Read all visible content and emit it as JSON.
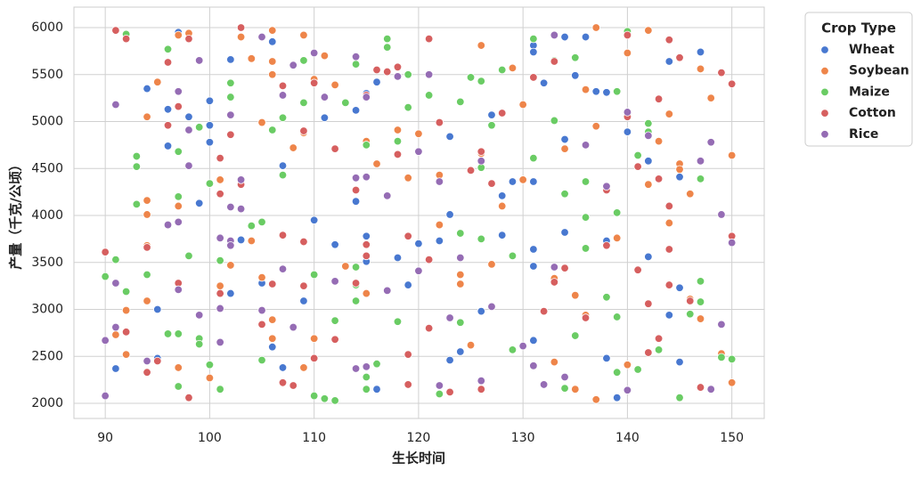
{
  "chart_data": {
    "type": "scatter",
    "xlabel": "生长时间",
    "ylabel": "产量（千克/公顷）",
    "legend_title": "Crop Type",
    "legend": "upper right outside",
    "grid": true,
    "xlim": [
      87,
      153.1
    ],
    "ylim": [
      1839,
      6218
    ],
    "xticks": [
      90,
      100,
      110,
      120,
      130,
      140,
      150
    ],
    "yticks": [
      2000,
      2500,
      3000,
      3500,
      4000,
      4500,
      5000,
      5500,
      6000
    ],
    "series": [
      {
        "name": "Wheat",
        "color": "#4878d0",
        "x": [
          91,
          94,
          95,
          95,
          96,
          96,
          97,
          98,
          99,
          100,
          100,
          100,
          102,
          102,
          103,
          105,
          106,
          106,
          107,
          107,
          109,
          110,
          111,
          112,
          114,
          114,
          115,
          115,
          115,
          116,
          116,
          118,
          119,
          120,
          122,
          123,
          123,
          123,
          124,
          126,
          127,
          128,
          128,
          129,
          131,
          131,
          131,
          131,
          131,
          131,
          132,
          134,
          134,
          134,
          135,
          136,
          137,
          138,
          138,
          138,
          139,
          140,
          142,
          142,
          144,
          144,
          145,
          145,
          145,
          147
        ],
        "values": [
          2370,
          5350,
          3000,
          2480,
          5130,
          4740,
          5950,
          5050,
          4130,
          5220,
          4780,
          4960,
          5660,
          3170,
          3740,
          3280,
          2600,
          5850,
          4530,
          2380,
          3090,
          3950,
          5040,
          3690,
          5120,
          4150,
          5300,
          3510,
          3780,
          5420,
          2150,
          3550,
          3260,
          3700,
          3730,
          4840,
          4010,
          2460,
          2550,
          2980,
          5070,
          4210,
          3790,
          4360,
          5810,
          5740,
          3640,
          3460,
          2670,
          4360,
          5410,
          4810,
          3820,
          5900,
          5490,
          5900,
          5320,
          3730,
          2480,
          5310,
          2060,
          4890,
          4580,
          3560,
          5640,
          2940,
          4410,
          3230,
          2440,
          5740
        ]
      },
      {
        "name": "Soybean",
        "color": "#ee854a",
        "x": [
          91,
          92,
          92,
          94,
          94,
          94,
          94,
          94,
          95,
          97,
          97,
          97,
          98,
          100,
          101,
          101,
          102,
          103,
          104,
          104,
          105,
          105,
          106,
          106,
          106,
          106,
          106,
          108,
          109,
          109,
          109,
          110,
          110,
          111,
          112,
          113,
          115,
          115,
          116,
          118,
          119,
          120,
          122,
          122,
          124,
          124,
          125,
          126,
          126,
          127,
          128,
          129,
          130,
          130,
          133,
          133,
          134,
          135,
          135,
          136,
          136,
          137,
          137,
          137,
          139,
          140,
          140,
          142,
          142,
          143,
          144,
          144,
          145,
          145,
          146,
          146,
          147,
          147,
          148,
          149,
          150,
          150
        ],
        "values": [
          2730,
          2990,
          2520,
          5050,
          4160,
          4010,
          3680,
          3090,
          5420,
          4100,
          2380,
          5920,
          5940,
          2270,
          4380,
          3250,
          3470,
          5900,
          3730,
          5670,
          4990,
          3340,
          2890,
          2690,
          5500,
          5970,
          5640,
          4720,
          5920,
          4880,
          2380,
          5450,
          2690,
          5700,
          5390,
          3460,
          4790,
          3170,
          4550,
          4910,
          4400,
          4870,
          3900,
          4430,
          3270,
          3370,
          2620,
          5810,
          4660,
          3480,
          4100,
          5570,
          5180,
          4380,
          2440,
          3330,
          4710,
          3150,
          2150,
          2940,
          5340,
          6000,
          4950,
          2040,
          3760,
          5730,
          2410,
          5970,
          4330,
          4790,
          5080,
          3920,
          4550,
          4490,
          3110,
          4230,
          5560,
          2900,
          5250,
          2530,
          4640,
          2220
        ]
      },
      {
        "name": "Maize",
        "color": "#6acc64",
        "x": [
          90,
          91,
          92,
          92,
          93,
          93,
          93,
          94,
          96,
          96,
          97,
          97,
          97,
          97,
          98,
          99,
          99,
          99,
          100,
          100,
          101,
          101,
          102,
          102,
          104,
          105,
          105,
          106,
          107,
          107,
          109,
          109,
          110,
          110,
          111,
          112,
          112,
          113,
          114,
          114,
          114,
          114,
          115,
          115,
          115,
          116,
          117,
          117,
          118,
          118,
          119,
          119,
          121,
          122,
          124,
          124,
          124,
          125,
          126,
          126,
          126,
          127,
          128,
          129,
          129,
          131,
          131,
          133,
          133,
          134,
          134,
          135,
          135,
          136,
          136,
          136,
          138,
          139,
          139,
          139,
          139,
          140,
          141,
          141,
          142,
          142,
          143,
          145,
          146,
          147,
          147,
          147,
          149,
          150
        ],
        "values": [
          3350,
          3530,
          5930,
          3190,
          4630,
          4520,
          4120,
          3370,
          5770,
          2740,
          4200,
          4680,
          2740,
          2180,
          3570,
          4940,
          2690,
          2630,
          4340,
          2410,
          3520,
          2150,
          5410,
          5260,
          3890,
          3930,
          2460,
          4910,
          4430,
          5040,
          5650,
          5200,
          3370,
          2080,
          2050,
          2880,
          2030,
          5200,
          5610,
          3450,
          3260,
          3090,
          4750,
          2280,
          2150,
          2420,
          5880,
          5790,
          4790,
          2870,
          5500,
          5150,
          5280,
          2100,
          5210,
          3810,
          2860,
          5470,
          5430,
          4510,
          3750,
          4960,
          5550,
          3570,
          2570,
          5880,
          4610,
          5650,
          5010,
          4230,
          2160,
          5680,
          2720,
          4360,
          3980,
          3650,
          3130,
          5320,
          4030,
          2920,
          2330,
          5960,
          4640,
          2360,
          4980,
          4890,
          2570,
          2060,
          2950,
          4390,
          3300,
          3080,
          2490,
          2470
        ]
      },
      {
        "name": "Cotton",
        "color": "#d65f5f",
        "x": [
          90,
          91,
          92,
          92,
          94,
          94,
          95,
          96,
          96,
          97,
          97,
          98,
          98,
          101,
          101,
          101,
          102,
          103,
          103,
          105,
          106,
          107,
          107,
          107,
          108,
          109,
          109,
          109,
          110,
          110,
          112,
          112,
          114,
          114,
          115,
          115,
          115,
          116,
          117,
          118,
          118,
          119,
          119,
          119,
          121,
          121,
          121,
          122,
          123,
          125,
          126,
          126,
          127,
          128,
          131,
          132,
          133,
          133,
          134,
          136,
          138,
          138,
          140,
          140,
          141,
          141,
          142,
          142,
          143,
          143,
          143,
          144,
          144,
          144,
          144,
          145,
          146,
          147,
          149,
          150,
          150
        ],
        "values": [
          3610,
          5970,
          5880,
          2760,
          3660,
          2330,
          2450,
          4960,
          5630,
          5160,
          3280,
          5880,
          2060,
          4610,
          4230,
          3170,
          4860,
          4330,
          6000,
          2840,
          3270,
          5380,
          3790,
          2220,
          2190,
          4900,
          3720,
          3250,
          5410,
          2480,
          4710,
          2680,
          4270,
          3280,
          5280,
          3690,
          3570,
          5550,
          5530,
          5580,
          4650,
          3780,
          2520,
          2200,
          5880,
          3530,
          2800,
          4990,
          2120,
          4480,
          4680,
          2150,
          4340,
          5090,
          5470,
          2980,
          5640,
          3290,
          3440,
          2910,
          3680,
          4270,
          5920,
          5050,
          4520,
          3420,
          3060,
          2540,
          5240,
          4390,
          2690,
          5870,
          4100,
          3640,
          3260,
          5680,
          3090,
          2170,
          5520,
          5400,
          3780
        ]
      },
      {
        "name": "Rice",
        "color": "#956cb4",
        "x": [
          90,
          90,
          91,
          91,
          91,
          94,
          96,
          97,
          97,
          97,
          98,
          98,
          99,
          99,
          101,
          101,
          101,
          102,
          102,
          102,
          102,
          103,
          103,
          105,
          105,
          107,
          107,
          108,
          108,
          110,
          111,
          112,
          114,
          114,
          114,
          115,
          115,
          115,
          117,
          117,
          118,
          120,
          120,
          121,
          122,
          122,
          123,
          124,
          126,
          126,
          127,
          130,
          131,
          132,
          133,
          133,
          134,
          136,
          138,
          140,
          140,
          142,
          147,
          148,
          148,
          149,
          149,
          150
        ],
        "values": [
          2670,
          2080,
          5180,
          2810,
          3280,
          2450,
          3900,
          5320,
          3930,
          3210,
          4530,
          4910,
          5650,
          2940,
          3760,
          3010,
          2650,
          5070,
          4090,
          3730,
          3680,
          4070,
          4380,
          5900,
          2990,
          3430,
          5280,
          5600,
          2810,
          5730,
          5260,
          3300,
          5690,
          4400,
          2370,
          5260,
          4410,
          2390,
          4210,
          3200,
          5480,
          4680,
          3410,
          5500,
          4360,
          2190,
          2910,
          3550,
          4580,
          2240,
          3030,
          2610,
          2400,
          2200,
          3450,
          5920,
          2280,
          4750,
          4310,
          5100,
          2140,
          4850,
          4580,
          4780,
          2150,
          4010,
          2840,
          3710
        ]
      }
    ]
  }
}
